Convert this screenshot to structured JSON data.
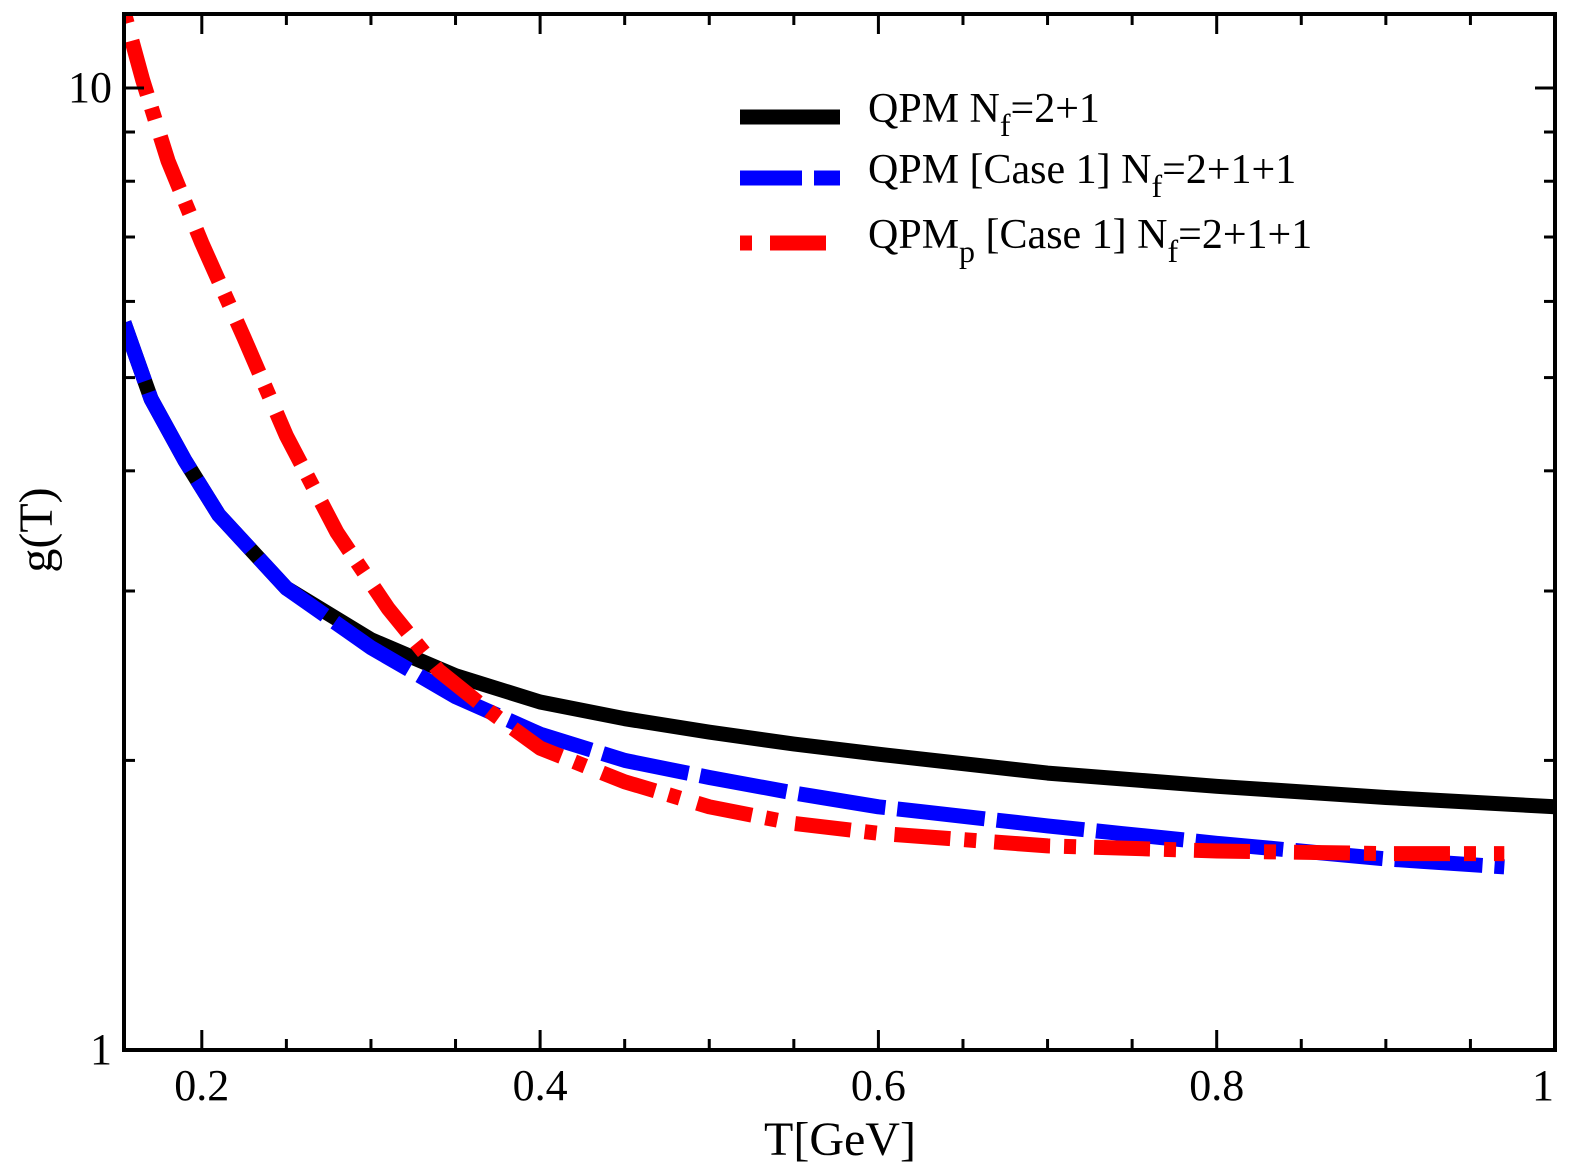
{
  "chart_data": {
    "type": "line",
    "title": "",
    "xlabel": "T[GeV]",
    "ylabel": "g(T)",
    "xlim": [
      0.154,
      1.0
    ],
    "ylim": [
      1,
      12
    ],
    "yscale": "log",
    "grid": false,
    "legend_position": "top-right",
    "x_ticks": [
      {
        "value": 0.2,
        "label": "0.2"
      },
      {
        "value": 0.4,
        "label": "0.4"
      },
      {
        "value": 0.6,
        "label": "0.6"
      },
      {
        "value": 0.8,
        "label": "0.8"
      },
      {
        "value": 1.0,
        "label": "1"
      }
    ],
    "x_minor_ticks": [
      0.25,
      0.3,
      0.35,
      0.45,
      0.5,
      0.55,
      0.65,
      0.7,
      0.75,
      0.85,
      0.9,
      0.95
    ],
    "y_ticks": [
      {
        "value": 1,
        "label": "1"
      },
      {
        "value": 10,
        "label": "10"
      }
    ],
    "y_minor_ticks": [
      2,
      3,
      4,
      5,
      6,
      7,
      8,
      9
    ],
    "series": [
      {
        "name": "QPM N_f=2+1",
        "legend": {
          "main": "QPM N",
          "sub": "f",
          "rest": "=2+1"
        },
        "color": "#000000",
        "style": "solid",
        "x": [
          0.154,
          0.17,
          0.19,
          0.21,
          0.25,
          0.3,
          0.35,
          0.4,
          0.45,
          0.5,
          0.55,
          0.6,
          0.7,
          0.8,
          0.9,
          1.0
        ],
        "y": [
          5.7,
          4.75,
          4.1,
          3.6,
          3.02,
          2.67,
          2.45,
          2.3,
          2.21,
          2.14,
          2.08,
          2.03,
          1.94,
          1.88,
          1.83,
          1.79
        ]
      },
      {
        "name": "QPM [Case 1] N_f=2+1+1",
        "legend": {
          "main": "QPM [Case 1] N",
          "sub": "f",
          "rest": "=2+1+1"
        },
        "color": "#0000ff",
        "style": "dashed",
        "x": [
          0.154,
          0.17,
          0.19,
          0.21,
          0.25,
          0.3,
          0.35,
          0.4,
          0.45,
          0.5,
          0.55,
          0.6,
          0.7,
          0.8,
          0.9,
          0.97
        ],
        "y": [
          5.7,
          4.75,
          4.1,
          3.6,
          3.02,
          2.62,
          2.33,
          2.13,
          2.0,
          1.92,
          1.85,
          1.79,
          1.71,
          1.64,
          1.58,
          1.55
        ]
      },
      {
        "name": "QPM_p [Case 1] N_f=2+1+1",
        "legend": {
          "main": "QPM",
          "sub_p": "p",
          "mid": " [Case 1] N",
          "sub": "f",
          "rest": "=2+1+1"
        },
        "color": "#ff0000",
        "style": "dashdot",
        "x": [
          0.154,
          0.165,
          0.18,
          0.2,
          0.225,
          0.25,
          0.28,
          0.31,
          0.34,
          0.37,
          0.4,
          0.45,
          0.5,
          0.55,
          0.6,
          0.7,
          0.8,
          0.9,
          0.97
        ],
        "y": [
          12.0,
          10.2,
          8.4,
          6.9,
          5.5,
          4.35,
          3.45,
          2.88,
          2.48,
          2.25,
          2.06,
          1.9,
          1.79,
          1.72,
          1.68,
          1.63,
          1.61,
          1.6,
          1.6
        ]
      }
    ]
  }
}
